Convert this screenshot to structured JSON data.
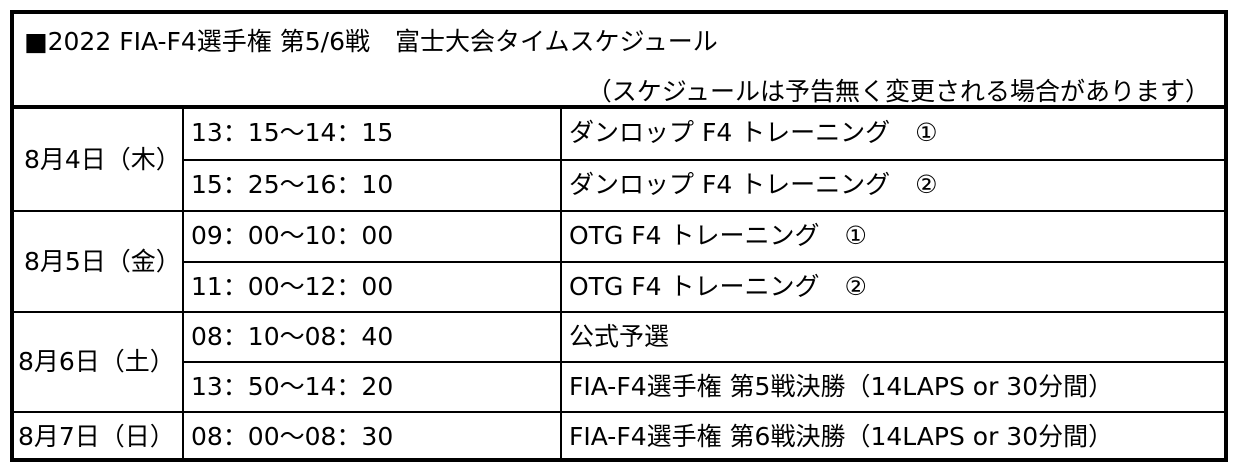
{
  "title": "■2022 FIA-F4選手権 第5/6戦　富士大会タイムスケジュール",
  "note": "（スケジュールは予告無く変更される場合があります）",
  "days": [
    {
      "date": "8月4日（木）",
      "sessions": [
        {
          "time": "13：15～14：15",
          "event": "ダンロップ F4 トレーニング　①"
        },
        {
          "time": "15：25～16：10",
          "event": "ダンロップ F4 トレーニング　②"
        }
      ]
    },
    {
      "date": "8月5日（金）",
      "sessions": [
        {
          "time": "09：00～10：00",
          "event": "OTG F4 トレーニング　①"
        },
        {
          "time": "11：00～12：00",
          "event": "OTG F4 トレーニング　②"
        }
      ]
    },
    {
      "date": "8月6日（土）",
      "sessions": [
        {
          "time": "08：10～08：40",
          "event": "公式予選"
        },
        {
          "time": "13：50～14：20",
          "event": "FIA-F4選手権 第5戦決勝（14LAPS or 30分間）"
        }
      ]
    },
    {
      "date": "8月7日（日）",
      "sessions": [
        {
          "time": "08：00～08：30",
          "event": "FIA-F4選手権 第6戦決勝（14LAPS or 30分間）"
        }
      ]
    }
  ]
}
